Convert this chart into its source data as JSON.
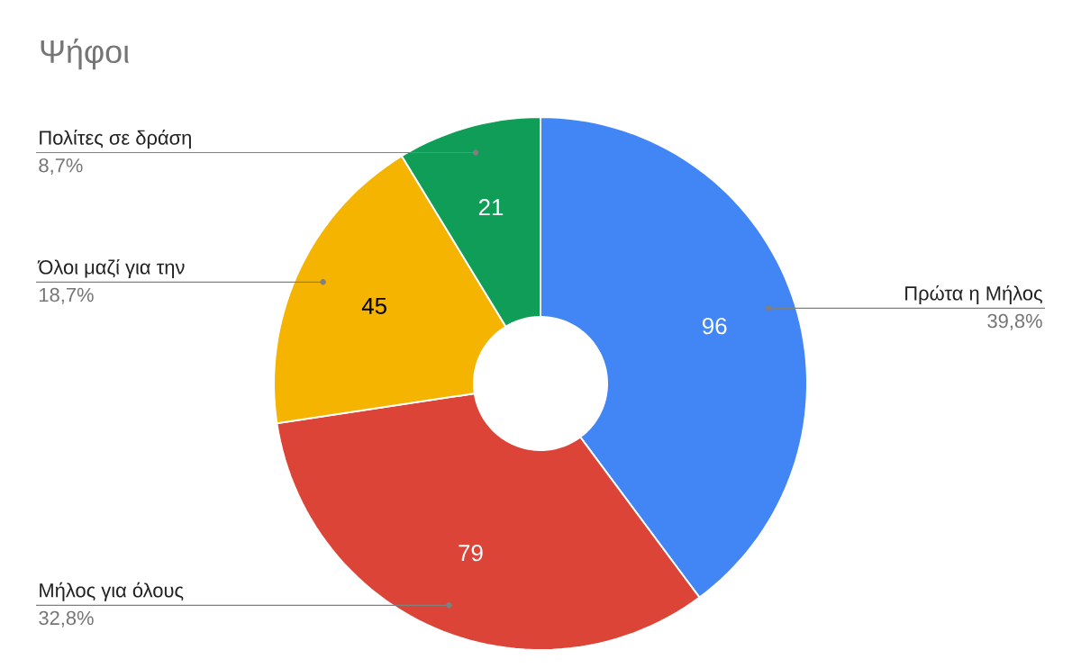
{
  "chart_data": {
    "type": "donut",
    "title": "Ψήφοι",
    "categories": [
      "Πρώτα η Μήλος",
      "Μήλος για όλους",
      "Όλοι μαζί για την",
      "Πολίτες σε δράση"
    ],
    "values": [
      96,
      79,
      45,
      21
    ],
    "colors": [
      "#4285f4",
      "#db4437",
      "#f4b400",
      "#0f9d58"
    ],
    "data_labels": true,
    "annotations": [
      "39,8%",
      "32,8%",
      "18,7%",
      "8,7%"
    ]
  }
}
